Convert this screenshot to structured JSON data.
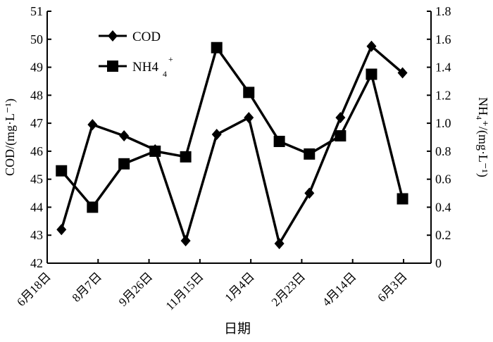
{
  "chart_data": {
    "type": "line",
    "title": "",
    "xlabel": "日期",
    "ylabel": "COD/(mg·L⁻¹)",
    "ylabel_right": "NH₄⁺/(mg·L⁻¹)",
    "x_tick_labels": [
      "6月18日",
      "8月7日",
      "9月26日",
      "11月15日",
      "1月4日",
      "2月23日",
      "4月14日",
      "6月3日"
    ],
    "x_tick_days": [
      0,
      50,
      100,
      150,
      200,
      250,
      300,
      350
    ],
    "x_days": [
      14,
      44.5,
      75.5,
      106,
      136,
      166.5,
      198,
      228,
      257.5,
      288,
      318.5,
      349
    ],
    "ylim": [
      42,
      51
    ],
    "yticks": [
      "42",
      "43",
      "44",
      "45",
      "46",
      "47",
      "48",
      "49",
      "50",
      "51"
    ],
    "ylim_right": [
      0,
      1.8
    ],
    "yticks_right": [
      "0",
      "0.2",
      "0.4",
      "0.6",
      "0.8",
      "1.0",
      "1.2",
      "1.4",
      "1.6",
      "1.8"
    ],
    "legend_position": "top-left",
    "series": [
      {
        "name": "COD",
        "axis": "left",
        "marker": "diamond",
        "values": [
          43.2,
          46.95,
          46.55,
          46.05,
          42.8,
          46.6,
          47.2,
          42.7,
          44.5,
          47.2,
          49.75,
          48.8
        ]
      },
      {
        "name": "NH4",
        "name_sub": "4",
        "name_sup": "+",
        "axis": "right",
        "marker": "square",
        "values": [
          0.66,
          0.4,
          0.71,
          0.8,
          0.76,
          1.54,
          1.22,
          0.87,
          0.78,
          0.91,
          1.35,
          0.46
        ]
      }
    ]
  }
}
